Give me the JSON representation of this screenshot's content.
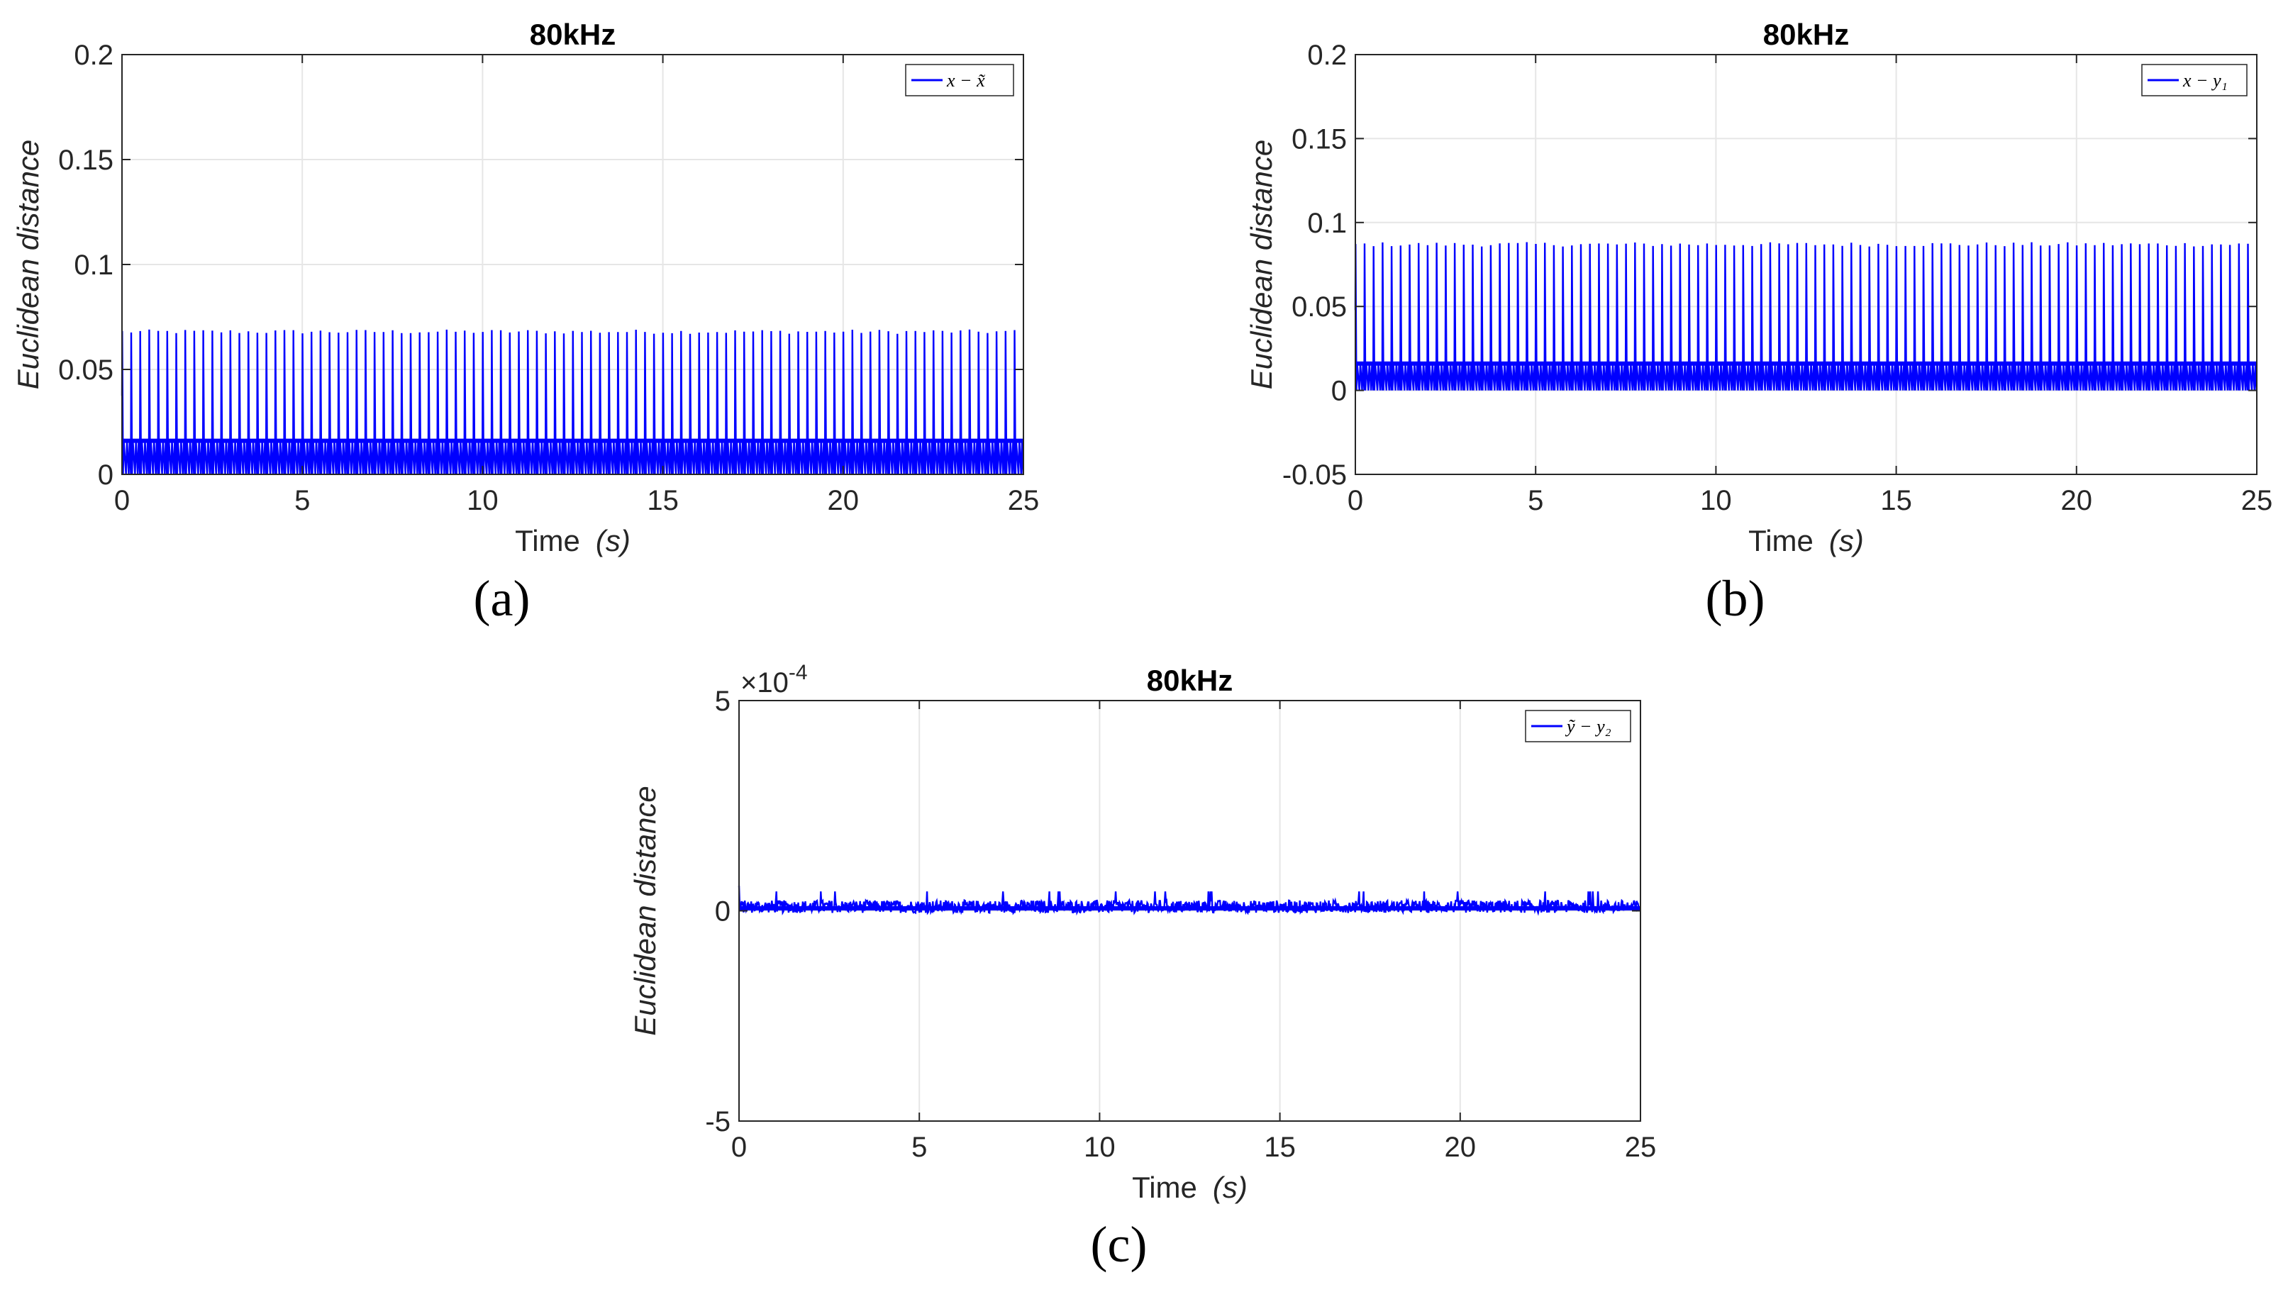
{
  "chart_data": [
    {
      "type": "line",
      "panel_label": "(a)",
      "title": "80kHz",
      "xlabel": "Time",
      "xlabel_unit": "(s)",
      "ylabel": "Euclidean distance",
      "xlim": [
        0,
        25
      ],
      "ylim": [
        0,
        0.2
      ],
      "xticks": [
        0,
        5,
        10,
        15,
        20,
        25
      ],
      "xtick_labels": [
        "0",
        "5",
        "10",
        "15",
        "20",
        "25"
      ],
      "yticks": [
        0,
        0.05,
        0.1,
        0.15,
        0.2
      ],
      "ytick_labels": [
        "0",
        "0.05",
        "0.1",
        "0.15",
        "0.2"
      ],
      "grid": true,
      "legend_position": "top-right",
      "series": [
        {
          "name": "x − x̃",
          "color": "#0000ff",
          "signal": {
            "pattern": "periodic-spikes",
            "spike_period_s": 0.25,
            "spike_peak": 0.068,
            "baseline": 0.016,
            "trough": 0.0
          }
        }
      ]
    },
    {
      "type": "line",
      "panel_label": "(b)",
      "title": "80kHz",
      "xlabel": "Time",
      "xlabel_unit": "(s)",
      "ylabel": "Euclidean distance",
      "xlim": [
        0,
        25
      ],
      "ylim": [
        -0.05,
        0.2
      ],
      "xticks": [
        0,
        5,
        10,
        15,
        20,
        25
      ],
      "xtick_labels": [
        "0",
        "5",
        "10",
        "15",
        "20",
        "25"
      ],
      "yticks": [
        -0.05,
        0,
        0.05,
        0.1,
        0.15,
        0.2
      ],
      "ytick_labels": [
        "-0.05",
        "0",
        "0.05",
        "0.1",
        "0.15",
        "0.2"
      ],
      "grid": true,
      "legend_position": "top-right",
      "series": [
        {
          "name": "x − y₁",
          "color": "#0000ff",
          "signal": {
            "pattern": "periodic-spikes",
            "spike_period_s": 0.25,
            "spike_peak": 0.087,
            "baseline": 0.016,
            "trough": 0.0
          }
        }
      ]
    },
    {
      "type": "line",
      "panel_label": "(c)",
      "title": "80kHz",
      "xlabel": "Time",
      "xlabel_unit": "(s)",
      "ylabel": "Euclidean distance",
      "y_exponent_label": "×10",
      "y_exponent_power": "-4",
      "xlim": [
        0,
        25
      ],
      "ylim": [
        -5,
        5
      ],
      "xticks": [
        0,
        5,
        10,
        15,
        20,
        25
      ],
      "xtick_labels": [
        "0",
        "5",
        "10",
        "15",
        "20",
        "25"
      ],
      "yticks": [
        -5,
        0,
        5
      ],
      "ytick_labels": [
        "-5",
        "0",
        "5"
      ],
      "grid": true,
      "legend_position": "top-right",
      "series": [
        {
          "name": "ỹ − y₂",
          "color": "#0000ff",
          "signal": {
            "pattern": "noise",
            "baseline": 0.1,
            "noise_amplitude": 0.15,
            "initial_spike": 0.6
          }
        }
      ]
    }
  ]
}
